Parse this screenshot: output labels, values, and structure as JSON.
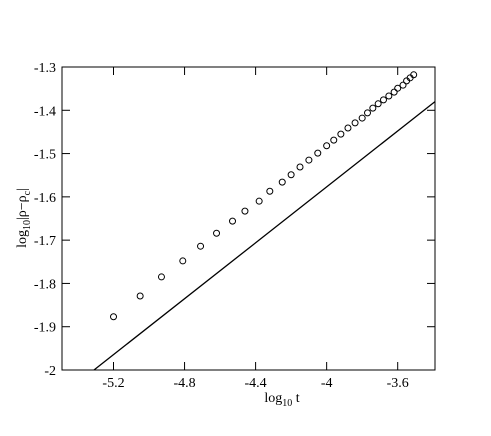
{
  "chart_data": {
    "type": "scatter",
    "x_label": [
      "log",
      "10",
      " t"
    ],
    "y_label": [
      "log",
      "10",
      "|ρ−ρ",
      "c",
      "|"
    ],
    "xlim": [
      -5.49,
      -3.39
    ],
    "ylim": [
      -2,
      -1.3
    ],
    "xticks": [
      -5.2,
      -4.8,
      -4.4,
      -4,
      -3.6
    ],
    "yticks": [
      -2,
      -1.9,
      -1.8,
      -1.7,
      -1.6,
      -1.5,
      -1.4,
      -1.3
    ],
    "series": [
      {
        "kind": "points",
        "color": "#000000",
        "x": [
          -5.2,
          -5.05,
          -4.93,
          -4.81,
          -4.71,
          -4.62,
          -4.53,
          -4.46,
          -4.38,
          -4.32,
          -4.25,
          -4.2,
          -4.15,
          -4.1,
          -4.05,
          -4.0,
          -3.96,
          -3.92,
          -3.88,
          -3.84,
          -3.8,
          -3.77,
          -3.74,
          -3.71,
          -3.68,
          -3.65,
          -3.62,
          -3.6,
          -3.57,
          -3.55,
          -3.53,
          -3.51
        ],
        "values": [
          -1.877,
          -1.829,
          -1.785,
          -1.748,
          -1.714,
          -1.684,
          -1.656,
          -1.633,
          -1.61,
          -1.587,
          -1.566,
          -1.549,
          -1.531,
          -1.515,
          -1.499,
          -1.482,
          -1.469,
          -1.455,
          -1.441,
          -1.429,
          -1.418,
          -1.406,
          -1.395,
          -1.385,
          -1.376,
          -1.367,
          -1.358,
          -1.349,
          -1.342,
          -1.332,
          -1.325,
          -1.318
        ]
      },
      {
        "kind": "line",
        "color": "#000000",
        "x": [
          -5.31,
          -3.39
        ],
        "values": [
          -2,
          -1.38
        ]
      }
    ]
  }
}
